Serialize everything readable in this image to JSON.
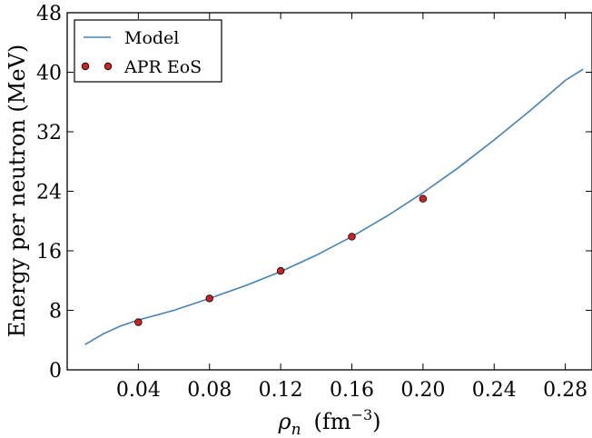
{
  "chart_data": {
    "type": "line",
    "xlabel": "ρ_n (fm⁻³)",
    "ylabel": "Energy per neutron (MeV)",
    "xlim": [
      0.0,
      0.295
    ],
    "ylim": [
      0,
      48
    ],
    "x_ticks": [
      0.04,
      0.08,
      0.12,
      0.16,
      0.2,
      0.24,
      0.28
    ],
    "x_tick_labels": [
      "0.04",
      "0.08",
      "0.12",
      "0.16",
      "0.20",
      "0.24",
      "0.28"
    ],
    "y_ticks": [
      0,
      8,
      16,
      24,
      32,
      40,
      48
    ],
    "y_tick_labels": [
      "0",
      "8",
      "16",
      "24",
      "32",
      "40",
      "48"
    ],
    "grid": false,
    "legend_position": "top-left",
    "series": [
      {
        "name": "Model",
        "kind": "line",
        "color": "#4682b4",
        "x": [
          0.01,
          0.02,
          0.03,
          0.04,
          0.06,
          0.08,
          0.1,
          0.12,
          0.14,
          0.16,
          0.18,
          0.2,
          0.22,
          0.24,
          0.26,
          0.28,
          0.29
        ],
        "y": [
          3.4,
          4.8,
          5.9,
          6.7,
          8.0,
          9.6,
          11.3,
          13.2,
          15.4,
          17.9,
          20.7,
          23.8,
          27.2,
          30.9,
          34.8,
          38.9,
          40.4
        ]
      },
      {
        "name": "APR EoS",
        "kind": "scatter",
        "color": "#cc2222",
        "x": [
          0.04,
          0.08,
          0.12,
          0.16,
          0.2
        ],
        "y": [
          6.4,
          9.6,
          13.3,
          17.9,
          23.0
        ]
      }
    ]
  }
}
